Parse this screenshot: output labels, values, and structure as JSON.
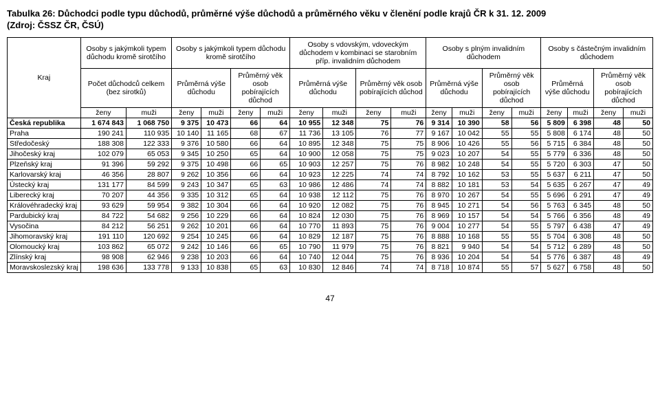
{
  "title": "Tabulka 26: Důchodci podle typu důchodů, průměrné výše důchodů a průměrného věku v členění podle krajů ČR k 31. 12. 2009",
  "source": "(Zdroj: ČSSZ ČR, ČSÚ)",
  "page_number": "47",
  "columns": {
    "kraj_label": "Kraj",
    "groups": [
      {
        "top": "Osoby s jakýmkoli typem důchodu kromě sirotčího",
        "sub": "Počet důchodců celkem (bez sirotků)"
      },
      {
        "top": "Osoby s jakýmkoli typem důchodu kromě sirotčího",
        "sub_a": "Průměrná výše důchodu",
        "sub_b": "Průměrný věk osob pobírajících důchod"
      },
      {
        "top": "Osoby s vdovským, vdoveckým důchodem v kombinaci se starobním příp. invalidním důchodem",
        "sub_a": "Průměrná výše důchodu",
        "sub_b": "Průměrný věk osob pobírajících důchod"
      },
      {
        "top": "Osoby s plným invalidním důchodem",
        "sub_a": "Průměrná výše důchodu",
        "sub_b": "Průměrný věk osob pobírajících důchod"
      },
      {
        "top": "Osoby s částečným invalidním důchodem",
        "sub_a": "Průměrná výše důchodu",
        "sub_b": "Průměrný věk osob pobírajících důchod"
      }
    ],
    "gender": {
      "f": "ženy",
      "m": "muži"
    }
  },
  "rows": [
    {
      "kraj": "Česká republika",
      "bold": true,
      "v": [
        "1 674 843",
        "1 068 750",
        "9 375",
        "10 473",
        "66",
        "64",
        "10 955",
        "12 348",
        "75",
        "76",
        "9 314",
        "10 390",
        "58",
        "56",
        "5 809",
        "6 398",
        "48",
        "50"
      ]
    },
    {
      "kraj": "Praha",
      "v": [
        "190 241",
        "110 935",
        "10 140",
        "11 165",
        "68",
        "67",
        "11 736",
        "13 105",
        "76",
        "77",
        "9 167",
        "10 042",
        "55",
        "55",
        "5 808",
        "6 174",
        "48",
        "50"
      ]
    },
    {
      "kraj": "Středočeský",
      "v": [
        "188 308",
        "122 333",
        "9 376",
        "10 580",
        "66",
        "64",
        "10 895",
        "12 348",
        "75",
        "75",
        "8 906",
        "10 426",
        "55",
        "56",
        "5 715",
        "6 384",
        "48",
        "50"
      ]
    },
    {
      "kraj": "Jihočeský kraj",
      "v": [
        "102 079",
        "65 053",
        "9 345",
        "10 250",
        "65",
        "64",
        "10 900",
        "12 058",
        "75",
        "75",
        "9 023",
        "10 207",
        "54",
        "55",
        "5 779",
        "6 336",
        "48",
        "50"
      ]
    },
    {
      "kraj": "Plzeňský kraj",
      "v": [
        "91 396",
        "59 292",
        "9 375",
        "10 498",
        "66",
        "65",
        "10 903",
        "12 257",
        "75",
        "76",
        "8 982",
        "10 248",
        "54",
        "55",
        "5 720",
        "6 303",
        "47",
        "50"
      ]
    },
    {
      "kraj": "Karlovarský kraj",
      "v": [
        "46 356",
        "28 807",
        "9 262",
        "10 356",
        "66",
        "64",
        "10 923",
        "12 225",
        "74",
        "74",
        "8 792",
        "10 162",
        "53",
        "55",
        "5 637",
        "6 211",
        "47",
        "50"
      ]
    },
    {
      "kraj": "Ústecký kraj",
      "v": [
        "131 177",
        "84 599",
        "9 243",
        "10 347",
        "65",
        "63",
        "10 986",
        "12 486",
        "74",
        "74",
        "8 882",
        "10 181",
        "53",
        "54",
        "5 635",
        "6 267",
        "47",
        "49"
      ]
    },
    {
      "kraj": "Liberecký kraj",
      "v": [
        "70 207",
        "44 356",
        "9 335",
        "10 312",
        "65",
        "64",
        "10 938",
        "12 112",
        "75",
        "76",
        "8 970",
        "10 267",
        "54",
        "55",
        "5 696",
        "6 291",
        "47",
        "49"
      ]
    },
    {
      "kraj": "Královéhradecký kraj",
      "v": [
        "93 629",
        "59 954",
        "9 382",
        "10 304",
        "66",
        "64",
        "10 920",
        "12 082",
        "75",
        "76",
        "8 945",
        "10 271",
        "54",
        "56",
        "5 763",
        "6 345",
        "48",
        "50"
      ]
    },
    {
      "kraj": "Pardubický kraj",
      "v": [
        "84 722",
        "54 682",
        "9 256",
        "10 229",
        "66",
        "64",
        "10 824",
        "12 030",
        "75",
        "76",
        "8 969",
        "10 157",
        "54",
        "54",
        "5 766",
        "6 356",
        "48",
        "49"
      ]
    },
    {
      "kraj": "Vysočina",
      "v": [
        "84 212",
        "56 251",
        "9 262",
        "10 201",
        "66",
        "64",
        "10 770",
        "11 893",
        "75",
        "76",
        "9 004",
        "10 277",
        "54",
        "55",
        "5 797",
        "6 438",
        "47",
        "49"
      ]
    },
    {
      "kraj": "Jihomoravský kraj",
      "v": [
        "191 110",
        "120 692",
        "9 254",
        "10 245",
        "66",
        "64",
        "10 829",
        "12 187",
        "75",
        "76",
        "8 888",
        "10 168",
        "55",
        "55",
        "5 704",
        "6 308",
        "48",
        "50"
      ]
    },
    {
      "kraj": "Olomoucký kraj",
      "v": [
        "103 862",
        "65 072",
        "9 242",
        "10 146",
        "66",
        "65",
        "10 790",
        "11 979",
        "75",
        "76",
        "8 821",
        "9 940",
        "54",
        "54",
        "5 712",
        "6 289",
        "48",
        "50"
      ]
    },
    {
      "kraj": "Zlínský kraj",
      "v": [
        "98 908",
        "62 946",
        "9 238",
        "10 203",
        "66",
        "64",
        "10 740",
        "12 044",
        "75",
        "76",
        "8 936",
        "10 204",
        "54",
        "54",
        "5 776",
        "6 387",
        "48",
        "49"
      ]
    },
    {
      "kraj": "Moravskoslezský kraj",
      "v": [
        "198 636",
        "133 778",
        "9 133",
        "10 838",
        "65",
        "63",
        "10 830",
        "12 846",
        "74",
        "74",
        "8 718",
        "10 874",
        "55",
        "57",
        "5 627",
        "6 758",
        "48",
        "50"
      ]
    }
  ]
}
